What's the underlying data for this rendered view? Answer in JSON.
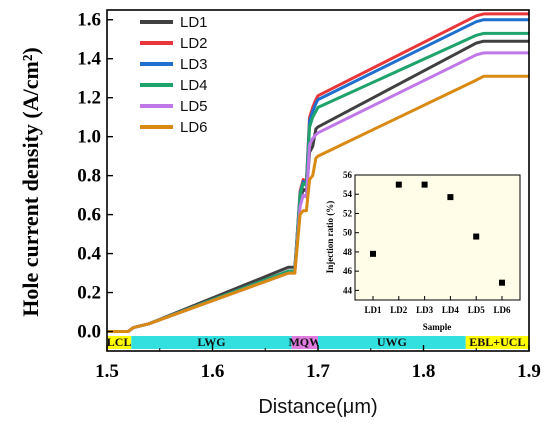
{
  "chart_data": [
    {
      "type": "line",
      "xlabel": "Distance(μm)",
      "ylabel": "Hole current density (A/cm²)",
      "xlim": [
        1.5,
        1.9
      ],
      "ylim": [
        -0.1,
        1.65
      ],
      "x_ticks": [
        "1.5",
        "1.6",
        "1.7",
        "1.8",
        "1.9"
      ],
      "y_ticks": [
        "0.0",
        "0.2",
        "0.4",
        "0.6",
        "0.8",
        "1.0",
        "1.2",
        "1.4",
        "1.6"
      ],
      "grid": false,
      "legend_position": "top-left",
      "regions": [
        {
          "label": "LCL",
          "x_start": 1.5,
          "x_end": 1.523,
          "color": "#ffff00"
        },
        {
          "label": "LWG",
          "x_start": 1.523,
          "x_end": 1.675,
          "color": "#33e0e0"
        },
        {
          "label": "MQW",
          "x_start": 1.675,
          "x_end": 1.7,
          "color": "#e07be0"
        },
        {
          "label": "UWG",
          "x_start": 1.7,
          "x_end": 1.84,
          "color": "#33e0e0"
        },
        {
          "label": "EBL+UCL",
          "x_start": 1.84,
          "x_end": 1.9,
          "color": "#ffff00"
        }
      ],
      "series": [
        {
          "name": "LD1",
          "color": "#404040",
          "x": [
            1.5,
            1.52,
            1.525,
            1.54,
            1.672,
            1.678,
            1.683,
            1.686,
            1.689,
            1.692,
            1.695,
            1.698,
            1.7,
            1.85,
            1.857,
            1.9
          ],
          "y": [
            0.0,
            0.0,
            0.02,
            0.04,
            0.33,
            0.33,
            0.67,
            0.73,
            0.72,
            0.92,
            0.95,
            1.04,
            1.05,
            1.48,
            1.49,
            1.49
          ]
        },
        {
          "name": "LD2",
          "color": "#e8363a",
          "x": [
            1.5,
            1.52,
            1.525,
            1.54,
            1.672,
            1.678,
            1.683,
            1.686,
            1.689,
            1.692,
            1.695,
            1.698,
            1.7,
            1.85,
            1.857,
            1.9
          ],
          "y": [
            0.0,
            0.0,
            0.02,
            0.04,
            0.31,
            0.31,
            0.72,
            0.78,
            0.77,
            1.1,
            1.15,
            1.19,
            1.21,
            1.62,
            1.63,
            1.63
          ]
        },
        {
          "name": "LD3",
          "color": "#1f6fd0",
          "x": [
            1.5,
            1.52,
            1.525,
            1.54,
            1.672,
            1.678,
            1.683,
            1.686,
            1.689,
            1.692,
            1.695,
            1.698,
            1.7,
            1.85,
            1.857,
            1.9
          ],
          "y": [
            0.0,
            0.0,
            0.02,
            0.04,
            0.31,
            0.31,
            0.71,
            0.77,
            0.76,
            1.08,
            1.13,
            1.17,
            1.19,
            1.59,
            1.6,
            1.6
          ]
        },
        {
          "name": "LD4",
          "color": "#1ea36a",
          "x": [
            1.5,
            1.52,
            1.525,
            1.54,
            1.672,
            1.678,
            1.683,
            1.686,
            1.689,
            1.692,
            1.695,
            1.698,
            1.7,
            1.85,
            1.857,
            1.9
          ],
          "y": [
            0.0,
            0.0,
            0.02,
            0.04,
            0.31,
            0.31,
            0.7,
            0.76,
            0.75,
            1.05,
            1.1,
            1.13,
            1.15,
            1.52,
            1.53,
            1.53
          ]
        },
        {
          "name": "LD5",
          "color": "#c077e8",
          "x": [
            1.5,
            1.52,
            1.525,
            1.54,
            1.672,
            1.678,
            1.683,
            1.686,
            1.689,
            1.692,
            1.695,
            1.698,
            1.7,
            1.85,
            1.857,
            1.9
          ],
          "y": [
            0.0,
            0.0,
            0.02,
            0.04,
            0.3,
            0.3,
            0.64,
            0.7,
            0.69,
            0.96,
            0.99,
            1.01,
            1.02,
            1.42,
            1.43,
            1.43
          ]
        },
        {
          "name": "LD6",
          "color": "#d98a12",
          "x": [
            1.5,
            1.52,
            1.525,
            1.54,
            1.672,
            1.678,
            1.683,
            1.686,
            1.689,
            1.692,
            1.695,
            1.698,
            1.7,
            1.85,
            1.857,
            1.9
          ],
          "y": [
            0.0,
            0.0,
            0.02,
            0.04,
            0.3,
            0.3,
            0.6,
            0.62,
            0.62,
            0.78,
            0.8,
            0.89,
            0.9,
            1.29,
            1.31,
            1.31
          ]
        }
      ]
    },
    {
      "type": "scatter",
      "xlabel": "Sample",
      "ylabel": "Injection ratio (%)",
      "categories": [
        "LD1",
        "LD2",
        "LD3",
        "LD4",
        "LD5",
        "LD6"
      ],
      "values": [
        47.8,
        55.0,
        55.0,
        53.7,
        49.6,
        44.8
      ],
      "ylim": [
        43,
        56
      ],
      "y_ticks": [
        "44",
        "46",
        "48",
        "50",
        "52",
        "54",
        "56"
      ],
      "background": "#fffde8"
    }
  ]
}
